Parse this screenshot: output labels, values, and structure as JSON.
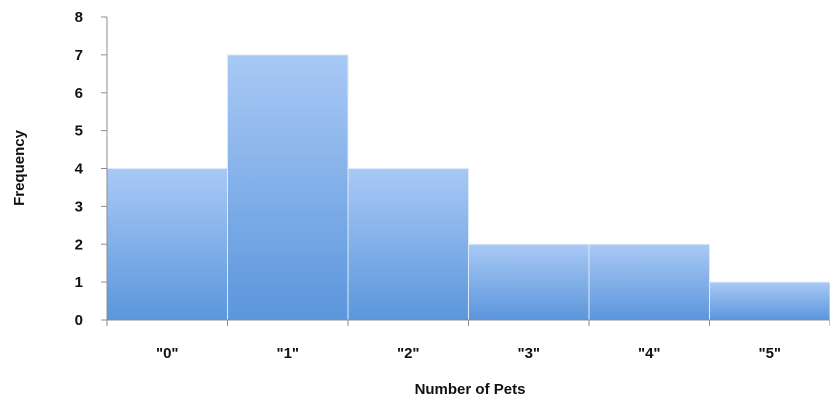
{
  "chart_data": {
    "type": "bar",
    "categories": [
      "\"0\"",
      "\"1\"",
      "\"2\"",
      "\"3\"",
      "\"4\"",
      "\"5\""
    ],
    "values": [
      4,
      7,
      4,
      2,
      2,
      1
    ],
    "title": "",
    "xlabel": "Number of Pets",
    "ylabel": "Frequency",
    "ylim": [
      0,
      8
    ],
    "yticks": [
      0,
      1,
      2,
      3,
      4,
      5,
      6,
      7,
      8
    ],
    "grid": false,
    "legend": "none",
    "bar_color_top": "#a9c9f5",
    "bar_color_bottom": "#5b96dc",
    "bar_edge_color": "#dfeaf8"
  }
}
